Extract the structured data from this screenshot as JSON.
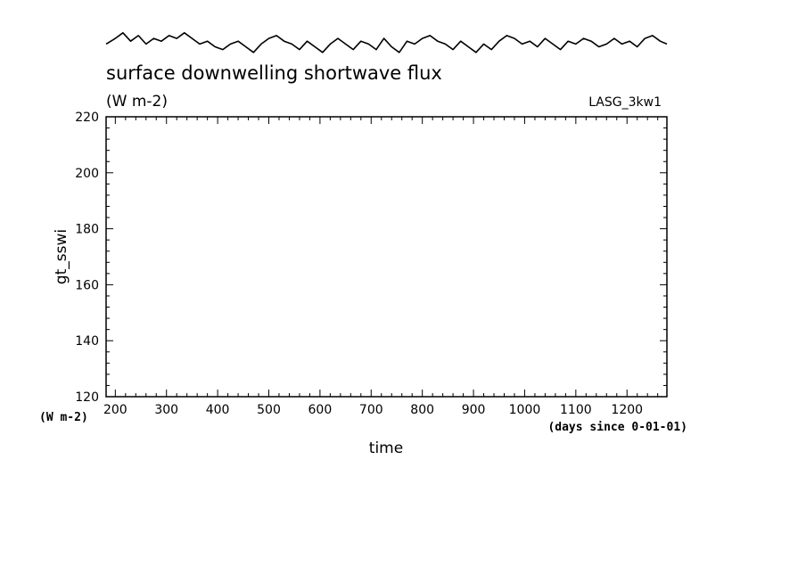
{
  "chart_data": {
    "type": "line",
    "title": "surface downwelling shortwave flux",
    "subtitle": "(W m-2)",
    "run_label": "LASG_3kw1",
    "xlabel": "time",
    "xunits": "(days since 0-01-01)",
    "ylabel": "gt_sswi",
    "yunits": "(W m-2)",
    "xlim": [
      182,
      1278
    ],
    "ylim": [
      120,
      220
    ],
    "xticks": [
      200,
      300,
      400,
      500,
      600,
      700,
      800,
      900,
      1000,
      1100,
      1200
    ],
    "yticks": [
      120,
      140,
      160,
      180,
      200,
      220
    ],
    "grid": false,
    "series": [
      {
        "x": [
          182,
          200,
          215,
          230,
          245,
          260,
          275,
          290,
          305,
          320,
          335,
          350,
          365,
          380,
          395,
          410,
          425,
          440,
          455,
          470,
          485,
          500,
          515,
          530,
          545,
          560,
          575,
          590,
          605,
          620,
          635,
          650,
          665,
          680,
          695,
          710,
          725,
          740,
          755,
          770,
          785,
          800,
          815,
          830,
          845,
          860,
          875,
          890,
          905,
          920,
          935,
          950,
          965,
          980,
          995,
          1010,
          1025,
          1040,
          1055,
          1070,
          1085,
          1100,
          1115,
          1130,
          1145,
          1160,
          1175,
          1190,
          1205,
          1220,
          1235,
          1250,
          1265,
          1278
        ],
        "values": [
          246,
          248,
          250,
          247,
          249,
          246,
          248,
          247,
          249,
          248,
          250,
          248,
          246,
          247,
          245,
          244,
          246,
          247,
          245,
          243,
          246,
          248,
          249,
          247,
          246,
          244,
          247,
          245,
          243,
          246,
          248,
          246,
          244,
          247,
          246,
          244,
          248,
          245,
          243,
          247,
          246,
          248,
          249,
          247,
          246,
          244,
          247,
          245,
          243,
          246,
          244,
          247,
          249,
          248,
          246,
          247,
          245,
          248,
          246,
          244,
          247,
          246,
          248,
          247,
          245,
          246,
          248,
          246,
          247,
          245,
          248,
          249,
          247,
          246
        ]
      }
    ]
  }
}
